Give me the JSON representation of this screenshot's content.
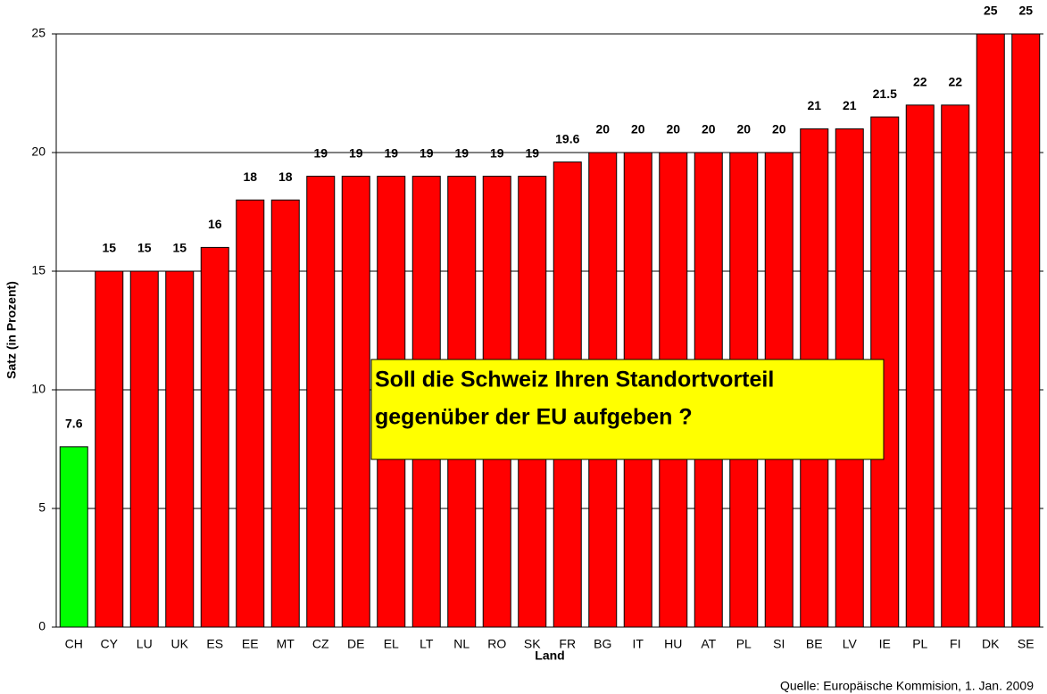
{
  "chart_data": {
    "type": "bar",
    "categories": [
      "CH",
      "CY",
      "LU",
      "UK",
      "ES",
      "EE",
      "MT",
      "CZ",
      "DE",
      "EL",
      "LT",
      "NL",
      "RO",
      "SK",
      "FR",
      "BG",
      "IT",
      "HU",
      "AT",
      "PL",
      "SI",
      "BE",
      "LV",
      "IE",
      "PL",
      "FI",
      "DK",
      "SE"
    ],
    "values": [
      7.6,
      15,
      15,
      15,
      16,
      18,
      18,
      19,
      19,
      19,
      19,
      19,
      19,
      19,
      19.6,
      20,
      20,
      20,
      20,
      20,
      20,
      21,
      21,
      21.5,
      22,
      22,
      25,
      25
    ],
    "colors": [
      "#00ff00",
      "#ff0000",
      "#ff0000",
      "#ff0000",
      "#ff0000",
      "#ff0000",
      "#ff0000",
      "#ff0000",
      "#ff0000",
      "#ff0000",
      "#ff0000",
      "#ff0000",
      "#ff0000",
      "#ff0000",
      "#ff0000",
      "#ff0000",
      "#ff0000",
      "#ff0000",
      "#ff0000",
      "#ff0000",
      "#ff0000",
      "#ff0000",
      "#ff0000",
      "#ff0000",
      "#ff0000",
      "#ff0000",
      "#ff0000",
      "#ff0000"
    ],
    "ylim": [
      0,
      25
    ],
    "yticks": [
      0,
      5,
      10,
      15,
      20,
      25
    ],
    "grid": true,
    "y_label": "Satz (in Prozent)",
    "x_label": "Land",
    "source": "Quelle: Europäische Kommision, 1. Jan. 2009",
    "annotation": [
      "Soll die Schweiz Ihren Standortvorteil",
      "gegenüber der EU aufgeben ?"
    ]
  }
}
